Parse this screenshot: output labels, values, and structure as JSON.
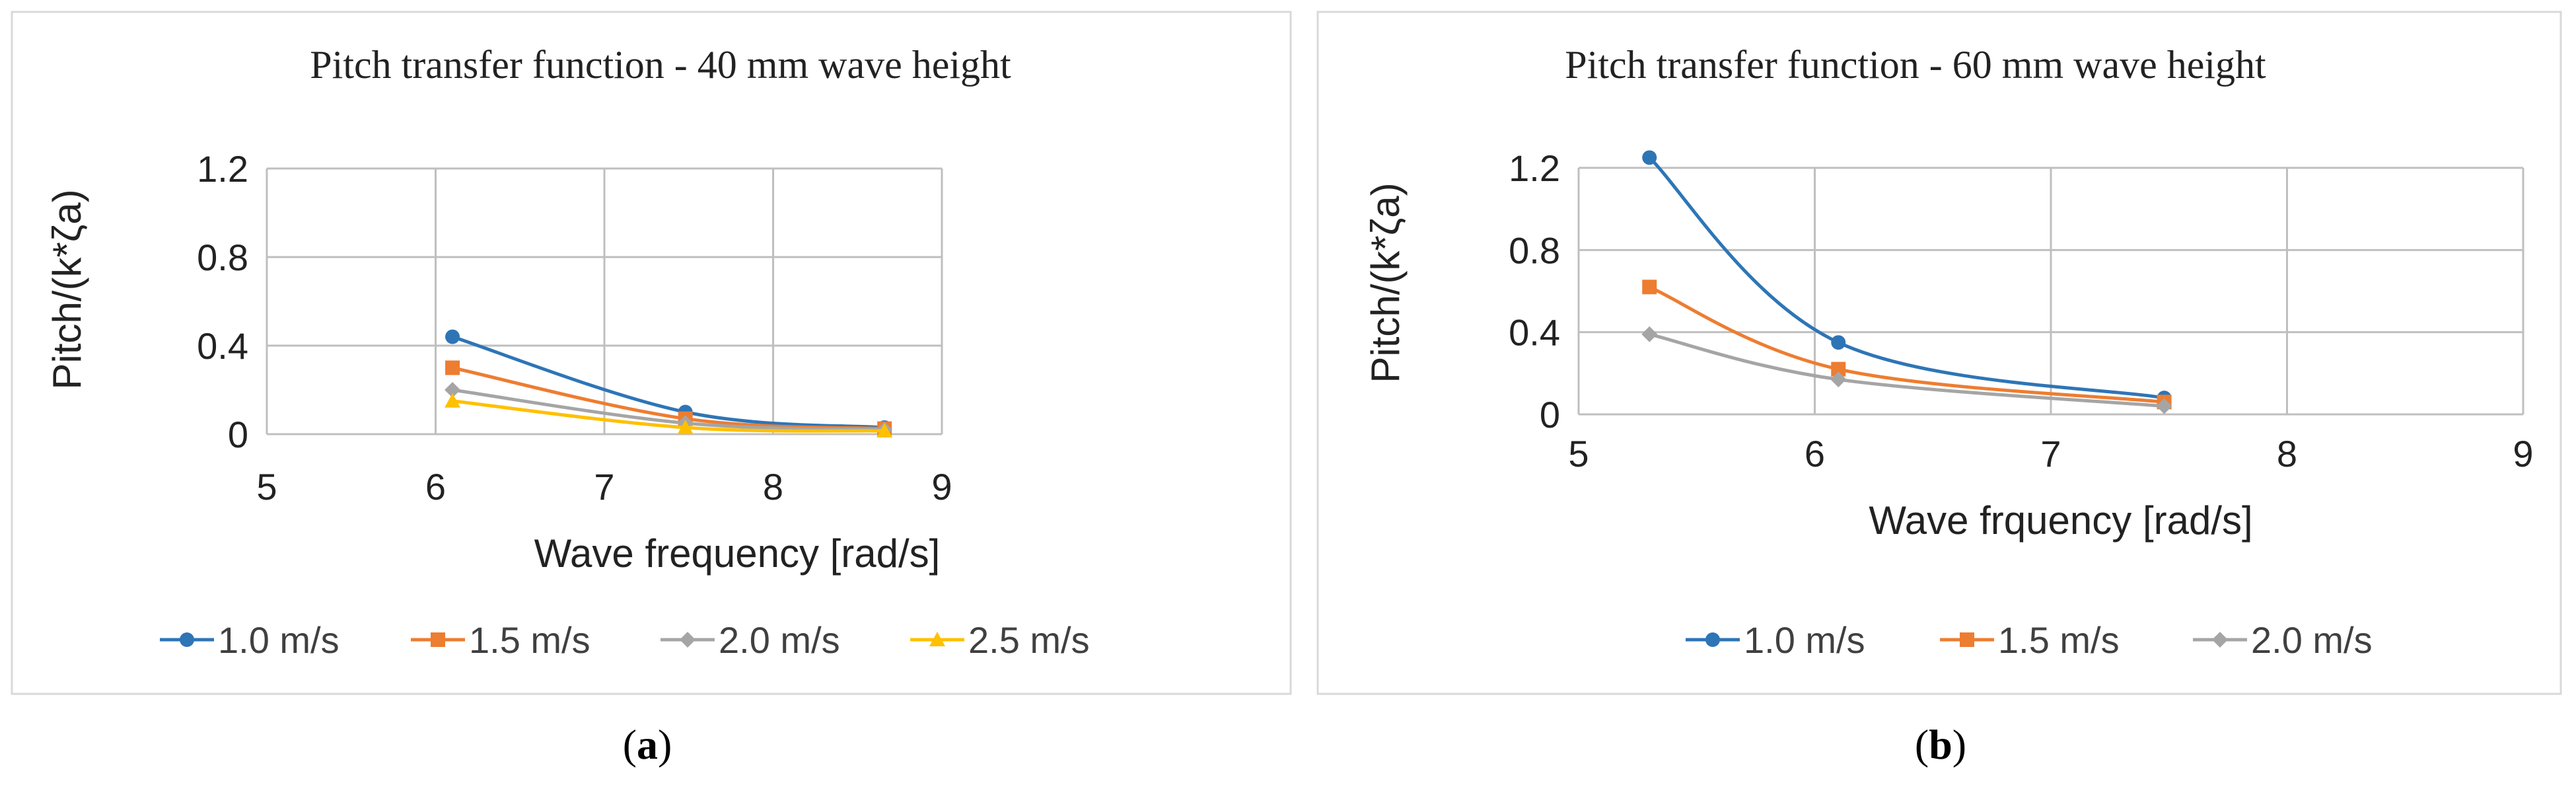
{
  "panels": [
    {
      "caption_open": "(",
      "caption_letter": "a",
      "caption_close": ")",
      "chart_data": {
        "type": "line",
        "title": "Pitch transfer function - 40 mm wave height",
        "xlabel": "Wave frequency [rad/s]",
        "ylabel": "Pitch/(k*ζa)",
        "xlim": [
          5,
          9
        ],
        "ylim": [
          0,
          1.2
        ],
        "xticks": [
          "5",
          "6",
          "7",
          "8",
          "9"
        ],
        "yticks": [
          "0",
          "0.4",
          "0.8",
          "1.2"
        ],
        "grid": true,
        "legend": "bottom",
        "series": [
          {
            "name": "1.0 m/s",
            "color": "#2E75B6",
            "marker": "circle",
            "x": [
              6.1,
              7.48,
              8.66
            ],
            "y": [
              0.44,
              0.1,
              0.03
            ]
          },
          {
            "name": "1.5 m/s",
            "color": "#ED7D31",
            "marker": "square",
            "x": [
              6.1,
              7.48,
              8.66
            ],
            "y": [
              0.3,
              0.07,
              0.025
            ]
          },
          {
            "name": "2.0 m/s",
            "color": "#A5A5A5",
            "marker": "diamond",
            "x": [
              6.1,
              7.48,
              8.66
            ],
            "y": [
              0.2,
              0.05,
              0.02
            ]
          },
          {
            "name": "2.5 m/s",
            "color": "#FFC000",
            "marker": "triangle",
            "x": [
              6.1,
              7.48,
              8.66
            ],
            "y": [
              0.15,
              0.03,
              0.015
            ]
          }
        ]
      }
    },
    {
      "caption_open": "(",
      "caption_letter": "b",
      "caption_close": ")",
      "chart_data": {
        "type": "line",
        "title": "Pitch transfer function - 60 mm wave height",
        "xlabel": "Wave frquency [rad/s]",
        "ylabel": "Pitch/(k*ζa)",
        "xlim": [
          5,
          9
        ],
        "ylim": [
          0,
          1.2
        ],
        "xticks": [
          "5",
          "6",
          "7",
          "8",
          "9"
        ],
        "yticks": [
          "0",
          "0.4",
          "0.8",
          "1.2"
        ],
        "grid": true,
        "legend": "bottom",
        "series": [
          {
            "name": "1.0 m/s",
            "color": "#2E75B6",
            "marker": "circle",
            "x": [
              5.3,
              6.1,
              7.48
            ],
            "y": [
              1.25,
              0.35,
              0.08
            ]
          },
          {
            "name": "1.5 m/s",
            "color": "#ED7D31",
            "marker": "square",
            "x": [
              5.3,
              6.1,
              7.48
            ],
            "y": [
              0.62,
              0.22,
              0.06
            ]
          },
          {
            "name": "2.0 m/s",
            "color": "#A5A5A5",
            "marker": "diamond",
            "x": [
              5.3,
              6.1,
              7.48
            ],
            "y": [
              0.39,
              0.17,
              0.04
            ]
          }
        ]
      }
    }
  ]
}
